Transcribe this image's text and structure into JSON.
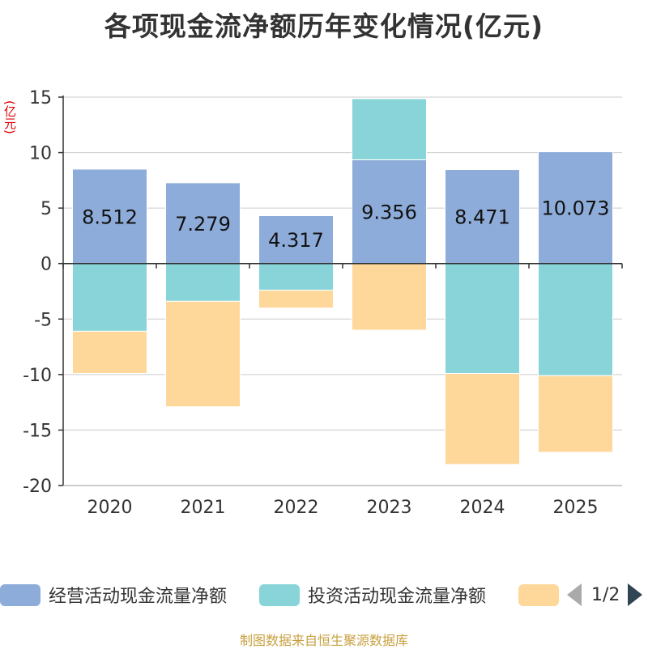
{
  "title": "各项现金流净额历年变化情况(亿元)",
  "unit": "(亿元)",
  "source": "制图数据来自恒生聚源数据库",
  "legend": {
    "items": [
      {
        "label": "经营活动现金流量净额",
        "color": "#8eacd9"
      },
      {
        "label": "投资活动现金流量净额",
        "color": "#88d4d8"
      },
      {
        "label": "",
        "color": "#fdd89a"
      }
    ],
    "page": "1/2"
  },
  "chart_data": {
    "type": "bar",
    "stacked": true,
    "categories": [
      "2020",
      "2021",
      "2022",
      "2023",
      "2024",
      "2025"
    ],
    "series": [
      {
        "name": "经营活动现金流量净额",
        "color": "#8eacd9",
        "values": [
          8.512,
          7.279,
          4.317,
          9.356,
          8.471,
          10.073
        ],
        "labels": [
          "8.512",
          "7.279",
          "4.317",
          "9.356",
          "8.471",
          "10.073"
        ]
      },
      {
        "name": "投资活动现金流量净额",
        "color": "#88d4d8",
        "values": [
          -6.1,
          -3.4,
          -2.4,
          5.5,
          -9.9,
          -10.1
        ]
      },
      {
        "name": "",
        "color": "#fdd89a",
        "values": [
          -3.8,
          -9.5,
          -1.6,
          -6.0,
          -8.2,
          -6.9
        ]
      }
    ],
    "yticks": [
      15,
      10,
      5,
      0,
      -5,
      -10,
      -15,
      -20
    ],
    "ylim": [
      -20,
      15
    ]
  }
}
